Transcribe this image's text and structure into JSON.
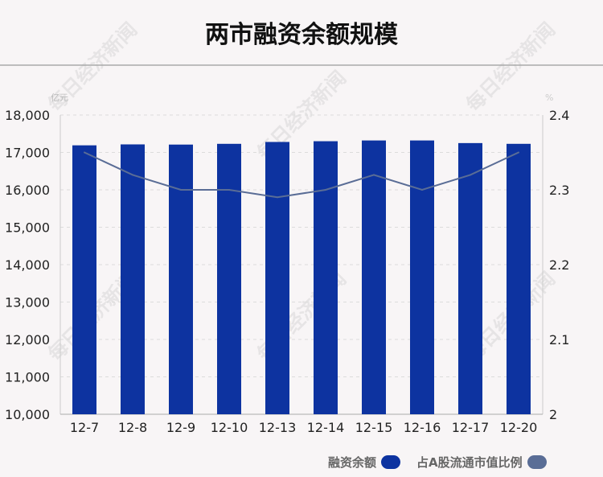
{
  "chart_data": {
    "type": "bar+line",
    "title": "两市融资余额规模",
    "y_left_unit": "亿元",
    "y_right_unit": "%",
    "categories": [
      "12-7",
      "12-8",
      "12-9",
      "12-10",
      "12-13",
      "12-14",
      "12-15",
      "12-16",
      "12-17",
      "12-20"
    ],
    "y_left_lim": [
      10000,
      18000
    ],
    "y_left_ticks": [
      "10,000",
      "11,000",
      "12,000",
      "13,000",
      "14,000",
      "15,000",
      "16,000",
      "17,000",
      "18,000"
    ],
    "y_right_lim": [
      2,
      2.4
    ],
    "y_right_ticks": [
      "2",
      "2.1",
      "2.2",
      "2.3",
      "2.4"
    ],
    "grid": true,
    "legend_position": "bottom-right",
    "series": [
      {
        "name": "融资余额",
        "type": "bar",
        "axis": "left",
        "color": "#0d33a0",
        "values": [
          17190,
          17215,
          17210,
          17230,
          17280,
          17300,
          17320,
          17320,
          17250,
          17230
        ]
      },
      {
        "name": "占A股流通市值比例",
        "type": "line",
        "axis": "right",
        "color": "#5a6d96",
        "values": [
          2.35,
          2.32,
          2.3,
          2.3,
          2.29,
          2.3,
          2.32,
          2.3,
          2.32,
          2.35
        ]
      }
    ]
  },
  "watermark": "每日经济新闻"
}
